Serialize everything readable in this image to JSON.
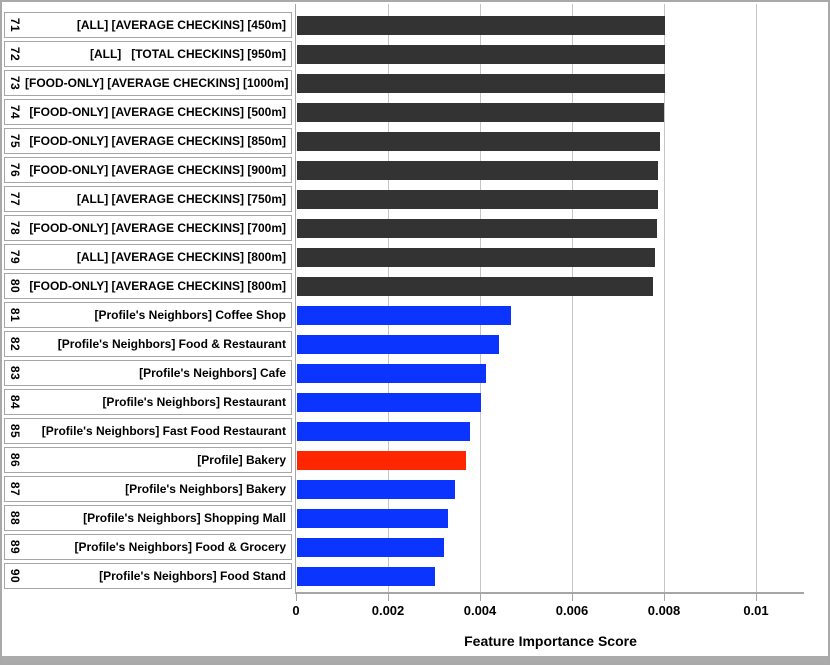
{
  "chart_data": {
    "type": "bar",
    "orientation": "horizontal",
    "title": "",
    "xlabel": "Feature Importance Score",
    "ylabel": "",
    "xlim": [
      0,
      0.011
    ],
    "grid": true,
    "x_ticks": [
      {
        "label": "0",
        "value": 0
      },
      {
        "label": "0.002",
        "value": 0.002
      },
      {
        "label": "0.004",
        "value": 0.004
      },
      {
        "label": "0.006",
        "value": 0.006
      },
      {
        "label": "0.008",
        "value": 0.008
      },
      {
        "label": "0.01",
        "value": 0.01
      }
    ],
    "colors": {
      "checkin_features": "#333333",
      "neighbor_features": "#0b35ff",
      "profile_feature": "#ff2600",
      "gridline": "#c5c5c5",
      "box_border": "#a6a6a6"
    },
    "rows": [
      {
        "rank": "71",
        "label": "[ALL] [AVERAGE CHECKINS] [450m]",
        "value": 0.00803,
        "color": "#333333"
      },
      {
        "rank": "72",
        "label": "[ALL]   [TOTAL CHECKINS] [950m]",
        "value": 0.00802,
        "color": "#333333"
      },
      {
        "rank": "73",
        "label": "[FOOD-ONLY] [AVERAGE CHECKINS] [1000m]",
        "value": 0.00802,
        "color": "#333333"
      },
      {
        "rank": "74",
        "label": "[FOOD-ONLY] [AVERAGE CHECKINS] [500m]",
        "value": 0.00801,
        "color": "#333333"
      },
      {
        "rank": "75",
        "label": "[FOOD-ONLY] [AVERAGE CHECKINS] [850m]",
        "value": 0.00791,
        "color": "#333333"
      },
      {
        "rank": "76",
        "label": "[FOOD-ONLY] [AVERAGE CHECKINS] [900m]",
        "value": 0.00788,
        "color": "#333333"
      },
      {
        "rank": "77",
        "label": "[ALL] [AVERAGE CHECKINS] [750m]",
        "value": 0.00786,
        "color": "#333333"
      },
      {
        "rank": "78",
        "label": "[FOOD-ONLY] [AVERAGE CHECKINS] [700m]",
        "value": 0.00784,
        "color": "#333333"
      },
      {
        "rank": "79",
        "label": "[ALL] [AVERAGE CHECKINS] [800m]",
        "value": 0.00781,
        "color": "#333333"
      },
      {
        "rank": "80",
        "label": "[FOOD-ONLY] [AVERAGE CHECKINS] [800m]",
        "value": 0.00775,
        "color": "#333333"
      },
      {
        "rank": "81",
        "label": "[Profile's Neighbors] Coffee Shop",
        "value": 0.00467,
        "color": "#0b35ff"
      },
      {
        "rank": "82",
        "label": "[Profile's Neighbors] Food & Restaurant",
        "value": 0.00442,
        "color": "#0b35ff"
      },
      {
        "rank": "83",
        "label": "[Profile's Neighbors] Cafe",
        "value": 0.00414,
        "color": "#0b35ff"
      },
      {
        "rank": "84",
        "label": "[Profile's Neighbors] Restaurant",
        "value": 0.00403,
        "color": "#0b35ff"
      },
      {
        "rank": "85",
        "label": "[Profile's Neighbors] Fast Food Restaurant",
        "value": 0.00378,
        "color": "#0b35ff"
      },
      {
        "rank": "86",
        "label": "[Profile] Bakery",
        "value": 0.00369,
        "color": "#ff2600"
      },
      {
        "rank": "87",
        "label": "[Profile's Neighbors] Bakery",
        "value": 0.00346,
        "color": "#0b35ff"
      },
      {
        "rank": "88",
        "label": "[Profile's Neighbors] Shopping Mall",
        "value": 0.00331,
        "color": "#0b35ff"
      },
      {
        "rank": "89",
        "label": "[Profile's Neighbors] Food & Grocery",
        "value": 0.00322,
        "color": "#0b35ff"
      },
      {
        "rank": "90",
        "label": "[Profile's Neighbors] Food Stand",
        "value": 0.00303,
        "color": "#0b35ff"
      }
    ]
  }
}
